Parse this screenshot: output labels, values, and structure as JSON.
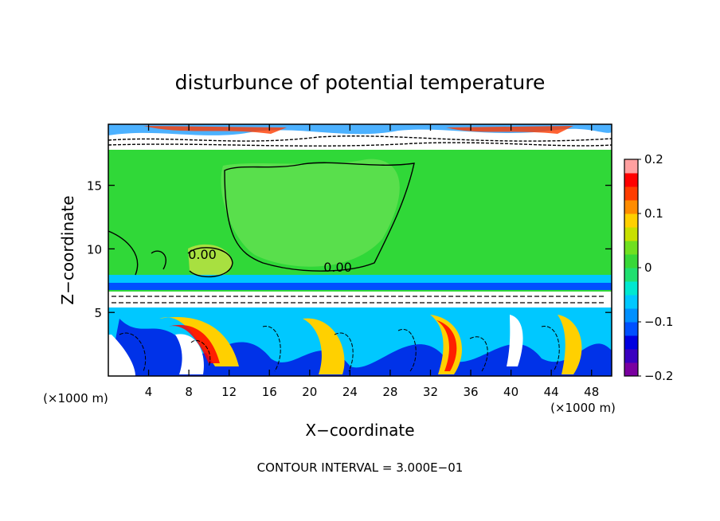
{
  "chart_data": {
    "type": "heatmap",
    "title": "disturbunce of potential temperature",
    "xlabel": "X−coordinate",
    "ylabel": "Z−coordinate",
    "x_unit": "(×1000 m)",
    "x_unit_right": "(×1000 m)",
    "xlim": [
      0,
      50
    ],
    "ylim": [
      0,
      19.8
    ],
    "x_ticks": [
      4,
      8,
      12,
      16,
      20,
      24,
      28,
      32,
      36,
      40,
      44,
      48
    ],
    "y_ticks": [
      5,
      10,
      15
    ],
    "colorbar": {
      "range": [
        -0.2,
        0.2
      ],
      "tick_values": [
        0.2,
        0.1,
        0,
        -0.1,
        -0.2
      ],
      "tick_labels": [
        "0.2",
        "0.1",
        "0",
        "−0.1",
        "−0.2"
      ],
      "colors": [
        "#7a00a0",
        "#3a00c0",
        "#0000e0",
        "#0050ff",
        "#0090ff",
        "#00c8ff",
        "#00e8d0",
        "#20e070",
        "#38d838",
        "#70e020",
        "#c8e000",
        "#ffd000",
        "#ff8c00",
        "#ff3c00",
        "#ff0000",
        "#ffa0a0"
      ]
    },
    "contour_labels": [
      {
        "text": "0.00",
        "x": 18.5,
        "z": 8.5
      },
      {
        "text": "0.00",
        "x": 8.5,
        "z": 9.7
      }
    ],
    "footer": "CONTOUR INTERVAL = 3.000E−01"
  }
}
